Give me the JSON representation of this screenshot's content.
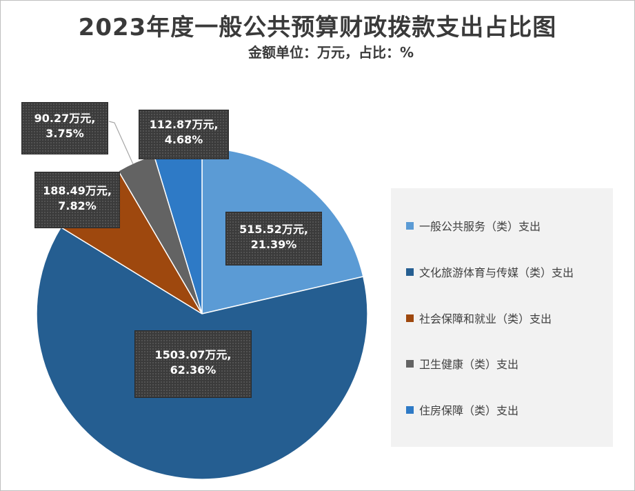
{
  "chart_data": {
    "type": "pie",
    "title": "2023年度一般公共预算财政拨款支出占比图",
    "subtitle": "金额单位：万元，占比：%",
    "legend_position": "right",
    "slices": [
      {
        "name": "一般公共服务（类）支出",
        "value": 515.52,
        "percent": 21.39,
        "label": "515.52万元,\n21.39%",
        "color": "#5b9bd5"
      },
      {
        "name": "文化旅游体育与传媒（类）支出",
        "value": 1503.07,
        "percent": 62.36,
        "label": "1503.07万元,\n62.36%",
        "color": "#255e91"
      },
      {
        "name": "社会保障和就业（类）支出",
        "value": 188.49,
        "percent": 7.82,
        "label": "188.49万元,\n7.82%",
        "color": "#9e480e"
      },
      {
        "name": "卫生健康（类）支出",
        "value": 90.27,
        "percent": 3.75,
        "label": "90.27万元,\n3.75%",
        "color": "#636363"
      },
      {
        "name": "住房保障（类）支出",
        "value": 112.87,
        "percent": 4.68,
        "label": "112.87万元,\n4.68%",
        "color": "#2e7ac6"
      }
    ]
  }
}
